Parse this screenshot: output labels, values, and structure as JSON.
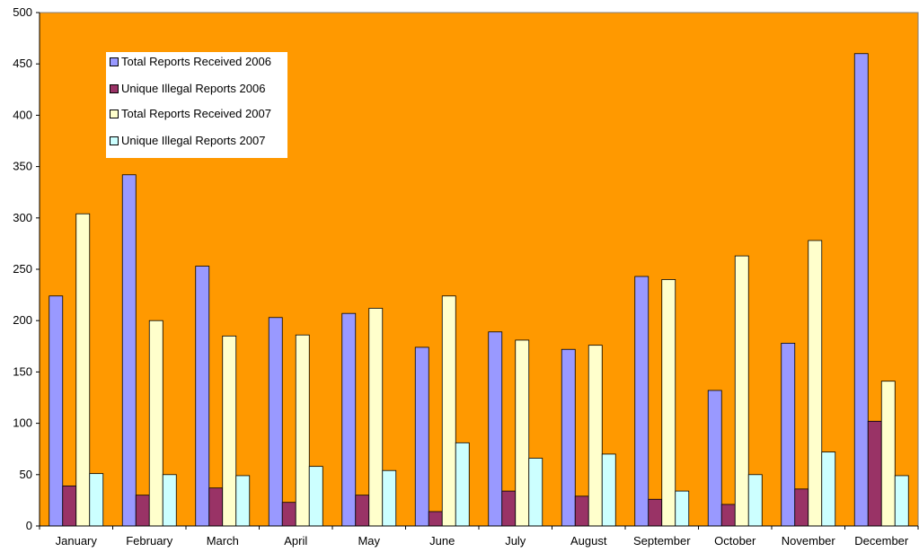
{
  "chart_data": {
    "type": "bar",
    "title": "",
    "xlabel": "",
    "ylabel": "",
    "categories": [
      "January",
      "February",
      "March",
      "April",
      "May",
      "June",
      "July",
      "August",
      "September",
      "October",
      "November",
      "December"
    ],
    "ylim": [
      0,
      500
    ],
    "yticks": [
      0,
      50,
      100,
      150,
      200,
      250,
      300,
      350,
      400,
      450,
      500
    ],
    "grid": false,
    "plot_background": "#FF9900",
    "legend_position": "top-left",
    "series": [
      {
        "name": "Total Reports Received 2006",
        "color": "#9999FF",
        "values": [
          224,
          342,
          253,
          203,
          207,
          174,
          189,
          172,
          243,
          132,
          178,
          460
        ]
      },
      {
        "name": "Unique Illegal Reports 2006",
        "color": "#993366",
        "values": [
          39,
          30,
          37,
          23,
          30,
          14,
          34,
          29,
          26,
          21,
          36,
          102
        ]
      },
      {
        "name": "Total Reports Received 2007",
        "color": "#FFFFCC",
        "values": [
          304,
          200,
          185,
          186,
          212,
          224,
          181,
          176,
          240,
          263,
          278,
          141
        ]
      },
      {
        "name": "Unique Illegal Reports 2007",
        "color": "#CCFFFF",
        "values": [
          51,
          50,
          49,
          58,
          54,
          81,
          66,
          70,
          34,
          50,
          72,
          49
        ]
      }
    ]
  }
}
